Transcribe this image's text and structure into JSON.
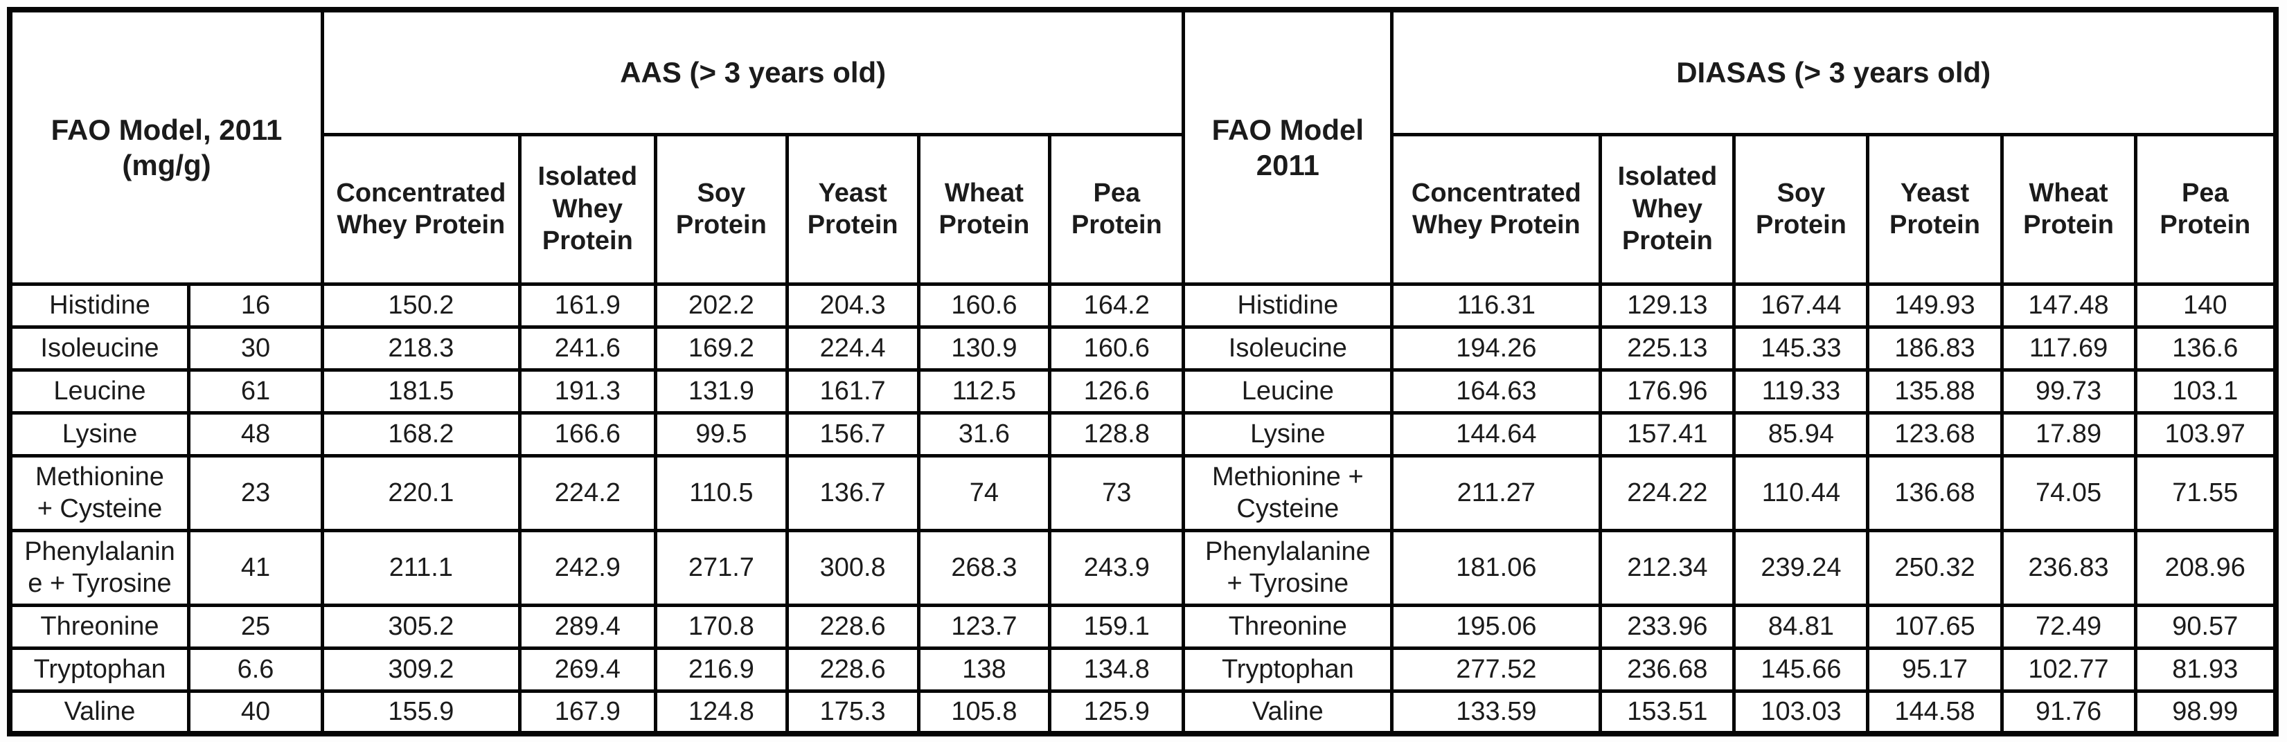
{
  "table": {
    "left_group": {
      "header": "FAO Model, 2011\n(mg/g)"
    },
    "aas_group": {
      "header": "AAS (> 3 years old)",
      "columns": [
        "Concentrated\nWhey Protein",
        "Isolated\nWhey\nProtein",
        "Soy\nProtein",
        "Yeast\nProtein",
        "Wheat\nProtein",
        "Pea\nProtein"
      ]
    },
    "mid_group": {
      "header": "FAO Model\n2011"
    },
    "diasas_group": {
      "header": "DIASAS (> 3 years old)",
      "columns": [
        "Concentrated\nWhey Protein",
        "Isolated\nWhey\nProtein",
        "Soy\nProtein",
        "Yeast\nProtein",
        "Wheat\nProtein",
        "Pea\nProtein"
      ]
    },
    "rows": [
      {
        "amino_acid": "Histidine",
        "fao_2011": "16",
        "aas": [
          "150.2",
          "161.9",
          "202.2",
          "204.3",
          "160.6",
          "164.2"
        ],
        "amino_acid_mid": "Histidine",
        "diasas": [
          "116.31",
          "129.13",
          "167.44",
          "149.93",
          "147.48",
          "140"
        ]
      },
      {
        "amino_acid": "Isoleucine",
        "fao_2011": "30",
        "aas": [
          "218.3",
          "241.6",
          "169.2",
          "224.4",
          "130.9",
          "160.6"
        ],
        "amino_acid_mid": "Isoleucine",
        "diasas": [
          "194.26",
          "225.13",
          "145.33",
          "186.83",
          "117.69",
          "136.6"
        ]
      },
      {
        "amino_acid": "Leucine",
        "fao_2011": "61",
        "aas": [
          "181.5",
          "191.3",
          "131.9",
          "161.7",
          "112.5",
          "126.6"
        ],
        "amino_acid_mid": "Leucine",
        "diasas": [
          "164.63",
          "176.96",
          "119.33",
          "135.88",
          "99.73",
          "103.1"
        ]
      },
      {
        "amino_acid": "Lysine",
        "fao_2011": "48",
        "aas": [
          "168.2",
          "166.6",
          "99.5",
          "156.7",
          "31.6",
          "128.8"
        ],
        "amino_acid_mid": "Lysine",
        "diasas": [
          "144.64",
          "157.41",
          "85.94",
          "123.68",
          "17.89",
          "103.97"
        ]
      },
      {
        "amino_acid": "Methionine\n+ Cysteine",
        "fao_2011": "23",
        "aas": [
          "220.1",
          "224.2",
          "110.5",
          "136.7",
          "74",
          "73"
        ],
        "amino_acid_mid": "Methionine +\nCysteine",
        "diasas": [
          "211.27",
          "224.22",
          "110.44",
          "136.68",
          "74.05",
          "71.55"
        ]
      },
      {
        "amino_acid": "Phenylalanin\ne + Tyrosine",
        "fao_2011": "41",
        "aas": [
          "211.1",
          "242.9",
          "271.7",
          "300.8",
          "268.3",
          "243.9"
        ],
        "amino_acid_mid": "Phenylalanine\n+ Tyrosine",
        "diasas": [
          "181.06",
          "212.34",
          "239.24",
          "250.32",
          "236.83",
          "208.96"
        ]
      },
      {
        "amino_acid": "Threonine",
        "fao_2011": "25",
        "aas": [
          "305.2",
          "289.4",
          "170.8",
          "228.6",
          "123.7",
          "159.1"
        ],
        "amino_acid_mid": "Threonine",
        "diasas": [
          "195.06",
          "233.96",
          "84.81",
          "107.65",
          "72.49",
          "90.57"
        ]
      },
      {
        "amino_acid": "Tryptophan",
        "fao_2011": "6.6",
        "aas": [
          "309.2",
          "269.4",
          "216.9",
          "228.6",
          "138",
          "134.8"
        ],
        "amino_acid_mid": "Tryptophan",
        "diasas": [
          "277.52",
          "236.68",
          "145.66",
          "95.17",
          "102.77",
          "81.93"
        ]
      },
      {
        "amino_acid": "Valine",
        "fao_2011": "40",
        "aas": [
          "155.9",
          "167.9",
          "124.8",
          "175.3",
          "105.8",
          "125.9"
        ],
        "amino_acid_mid": "Valine",
        "diasas": [
          "133.59",
          "153.51",
          "103.03",
          "144.58",
          "91.76",
          "98.99"
        ]
      }
    ]
  }
}
